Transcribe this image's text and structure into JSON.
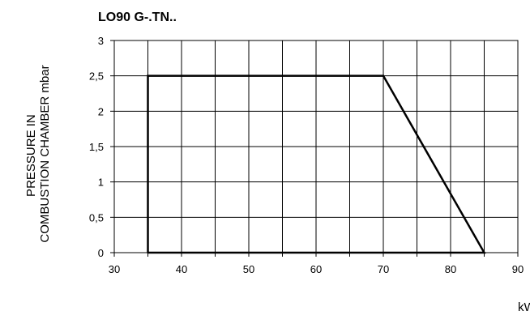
{
  "chart_data": {
    "type": "line",
    "title": "LO90 G-.TN..",
    "ylabel": [
      "PRESSURE IN",
      "COMBUSTION CHAMBER mbar"
    ],
    "xlabel": "kW",
    "xlim": [
      30,
      90
    ],
    "ylim": [
      0,
      3
    ],
    "x_ticks": [
      30,
      40,
      50,
      60,
      70,
      80,
      90
    ],
    "y_ticks": [
      0,
      0.5,
      1,
      1.5,
      2,
      2.5,
      3
    ],
    "y_tick_labels": [
      "0",
      "0,5",
      "1",
      "1,5",
      "2",
      "2,5",
      "3"
    ],
    "x_minor_ticks": [
      35,
      45,
      55,
      65,
      75,
      85
    ],
    "grid": true,
    "series": [
      {
        "x": [
          35,
          35,
          70,
          85,
          35
        ],
        "y": [
          0,
          2.5,
          2.5,
          0,
          0
        ]
      }
    ],
    "colors": {
      "line": "#000000",
      "grid": "#000000",
      "background": "#ffffff"
    }
  }
}
